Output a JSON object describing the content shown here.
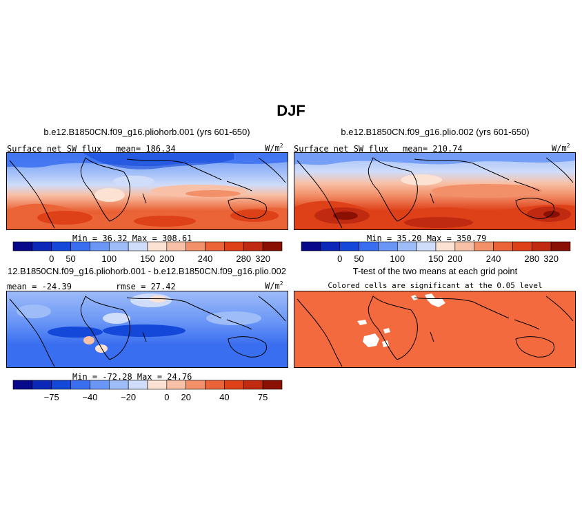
{
  "chart_data": {
    "type": "heatmap",
    "title": "DJF",
    "panels": [
      {
        "title": "b.e12.B1850CN.f09_g16.pliohorb.001 (yrs 601-650)",
        "left_label": "Surface net SW flux",
        "center_label": "mean= 186.34",
        "units": "W/m",
        "units_sup": "2",
        "min_max": "Min =  36.32  Max = 308.61",
        "field_mean": 186.34,
        "field_min": 36.32,
        "field_max": 308.61,
        "colorbar_ticks": [
          "0",
          "50",
          "100",
          "150",
          "200",
          "240",
          "280",
          "320"
        ],
        "colors": [
          "#08088a",
          "#0c28b8",
          "#1448d8",
          "#3a6ef0",
          "#6a96f6",
          "#9ebcf8",
          "#cfdcfa",
          "#fbe2d2",
          "#f8c0a6",
          "#f2906a",
          "#ea6438",
          "#de4018",
          "#c02a10",
          "#8a1004"
        ]
      },
      {
        "title": "b.e12.B1850CN.f09_g16.plio.002 (yrs 601-650)",
        "left_label": "Surface net SW flux",
        "center_label": "mean= 210.74",
        "units": "W/m",
        "units_sup": "2",
        "min_max": "Min =  35.20  Max = 350.79",
        "field_mean": 210.74,
        "field_min": 35.2,
        "field_max": 350.79,
        "colorbar_ticks": [
          "0",
          "50",
          "100",
          "150",
          "200",
          "240",
          "280",
          "320"
        ],
        "colors": [
          "#08088a",
          "#0c28b8",
          "#1448d8",
          "#3a6ef0",
          "#6a96f6",
          "#9ebcf8",
          "#cfdcfa",
          "#fbe2d2",
          "#f8c0a6",
          "#f2906a",
          "#ea6438",
          "#de4018",
          "#c02a10",
          "#8a1004"
        ]
      },
      {
        "title": "12.B1850CN.f09_g16.pliohorb.001 - b.e12.B1850CN.f09_g16.plio.002",
        "left_label": "mean = -24.39",
        "center_label": "rmse =  27.42",
        "units": "W/m",
        "units_sup": "2",
        "min_max": "Min = -72.28  Max =  24.76",
        "field_mean": -24.39,
        "field_rmse": 27.42,
        "field_min": -72.28,
        "field_max": 24.76,
        "colorbar_ticks": [
          "−75",
          "−40",
          "−20",
          "0",
          "20",
          "40",
          "75"
        ],
        "colors": [
          "#08088a",
          "#0c28b8",
          "#1448d8",
          "#3a6ef0",
          "#6a96f6",
          "#9ebcf8",
          "#cfdcfa",
          "#fbe2d2",
          "#f8c0a6",
          "#f2906a",
          "#ea6438",
          "#de4018",
          "#c02a10",
          "#8a1004"
        ]
      },
      {
        "title": "T-test of the two means at each grid point",
        "subtitle": "Colored cells are significant at the 0.05 level",
        "fill_color": "#f26a3e"
      }
    ]
  }
}
